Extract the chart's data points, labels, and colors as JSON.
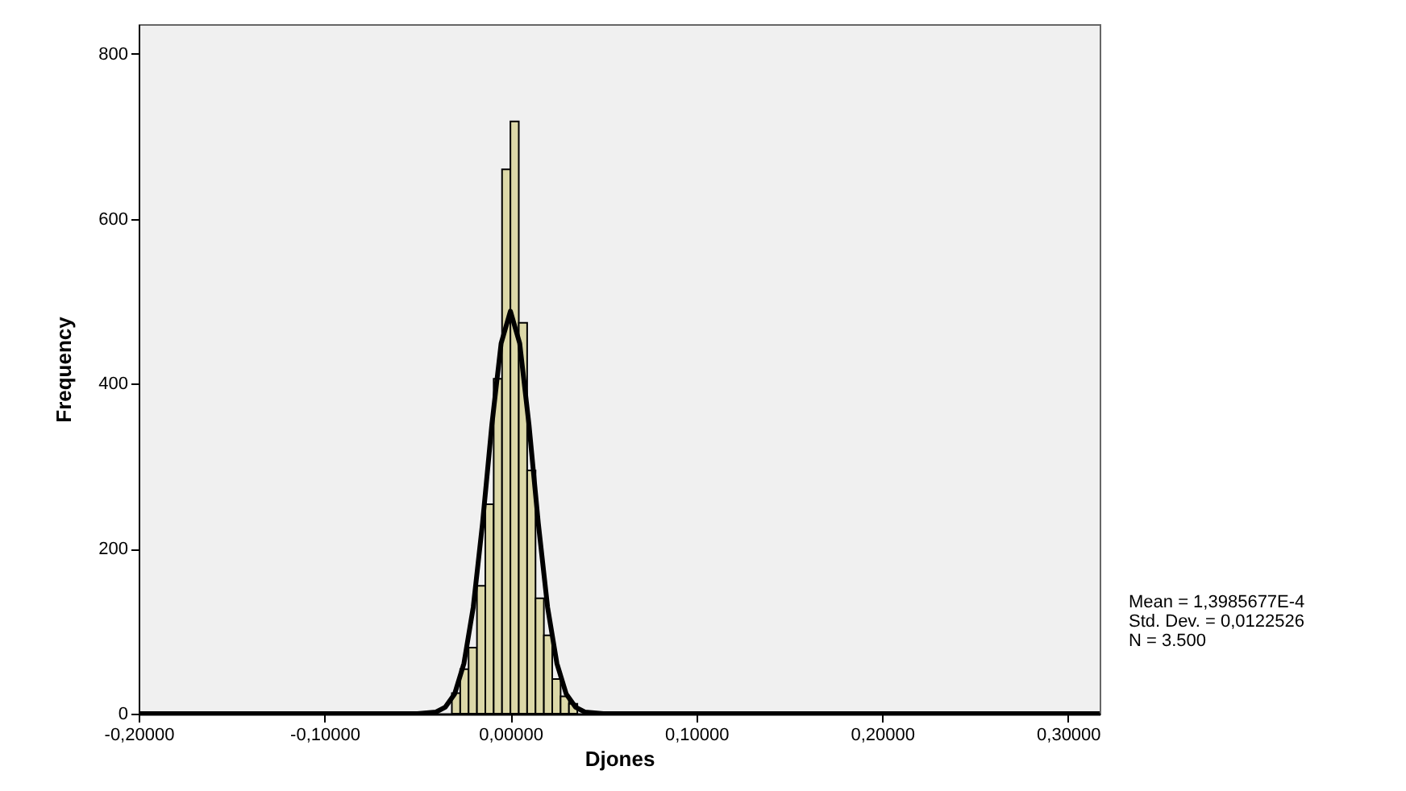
{
  "chart_data": {
    "type": "histogram",
    "xlabel": "Djones",
    "ylabel": "Frequency",
    "annotations": [
      "Mean = 1,3985677E-4",
      "Std. Dev. = 0,0122526",
      "N = 3.500"
    ],
    "xlim": [
      -0.2,
      0.317
    ],
    "xticks": [
      {
        "value": -0.2,
        "label": "-0,20000"
      },
      {
        "value": -0.1,
        "label": "-0,10000"
      },
      {
        "value": 0,
        "label": "0,00000"
      },
      {
        "value": 0.1,
        "label": "0,10000"
      },
      {
        "value": 0.2,
        "label": "0,20000"
      },
      {
        "value": 0.3,
        "label": "0,30000"
      }
    ],
    "ylim": [
      0,
      836
    ],
    "yticks": [
      0,
      200,
      400,
      600,
      800
    ],
    "series": [
      {
        "color": "#dcd8a8",
        "bins": [
          -0.0495,
          -0.045,
          -0.0405,
          -0.036,
          -0.0315,
          -0.027,
          -0.0225,
          -0.018,
          -0.0135,
          -0.009,
          -0.0045,
          0,
          0.0045,
          0.009,
          0.0135,
          0.018,
          0.0225,
          0.027,
          0.0315,
          0.036,
          0.0405,
          0.045,
          0.0495
        ],
        "values": [
          null,
          null,
          null,
          null,
          25,
          54,
          80,
          155,
          254,
          406,
          660,
          718,
          474,
          295,
          140,
          95,
          42,
          21,
          12,
          null,
          null,
          2
        ]
      },
      {
        "type": "line",
        "color": "#000000",
        "x": [
          -0.2,
          -0.06,
          -0.05,
          -0.04,
          -0.035,
          -0.03,
          -0.025,
          -0.02,
          -0.015,
          -0.01,
          -0.005,
          0,
          0.005,
          0.01,
          0.015,
          0.02,
          0.025,
          0.03,
          0.035,
          0.04,
          0.05,
          0.06,
          0.317
        ],
        "values": [
          0,
          0,
          0,
          2,
          8,
          24,
          61,
          129,
          231,
          350,
          449,
          488,
          449,
          350,
          231,
          129,
          61,
          24,
          8,
          2,
          0,
          0,
          0
        ]
      }
    ]
  }
}
